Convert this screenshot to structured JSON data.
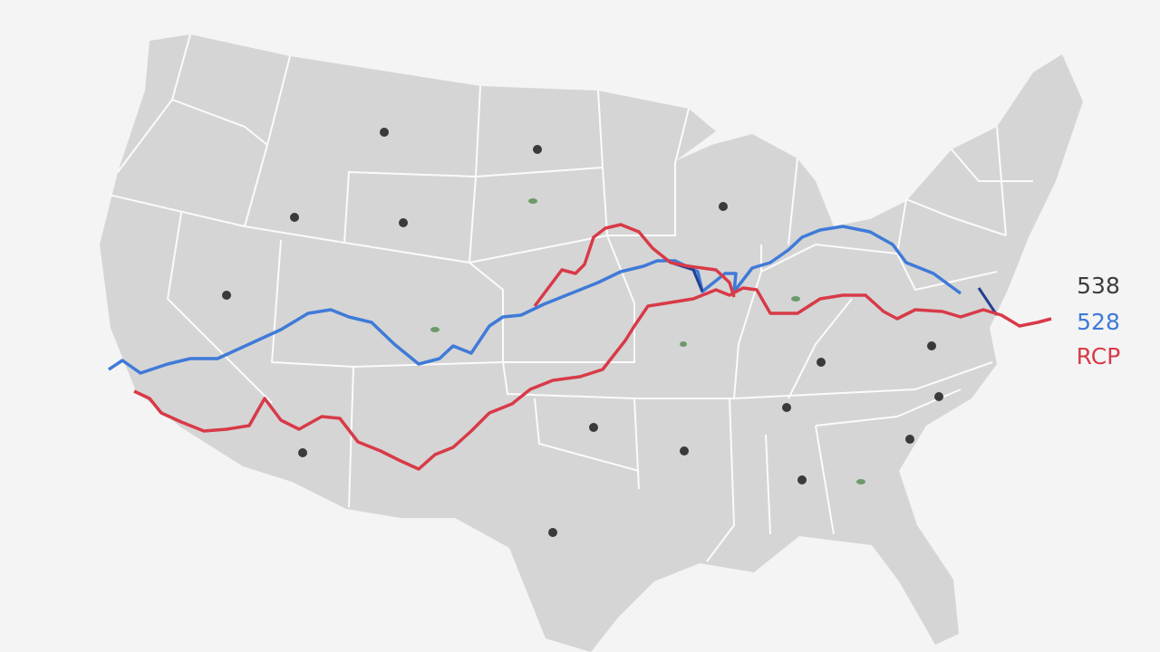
{
  "legend": {
    "items": [
      {
        "label": "538"
      },
      {
        "label": "528"
      },
      {
        "label": "RCP"
      }
    ]
  }
}
